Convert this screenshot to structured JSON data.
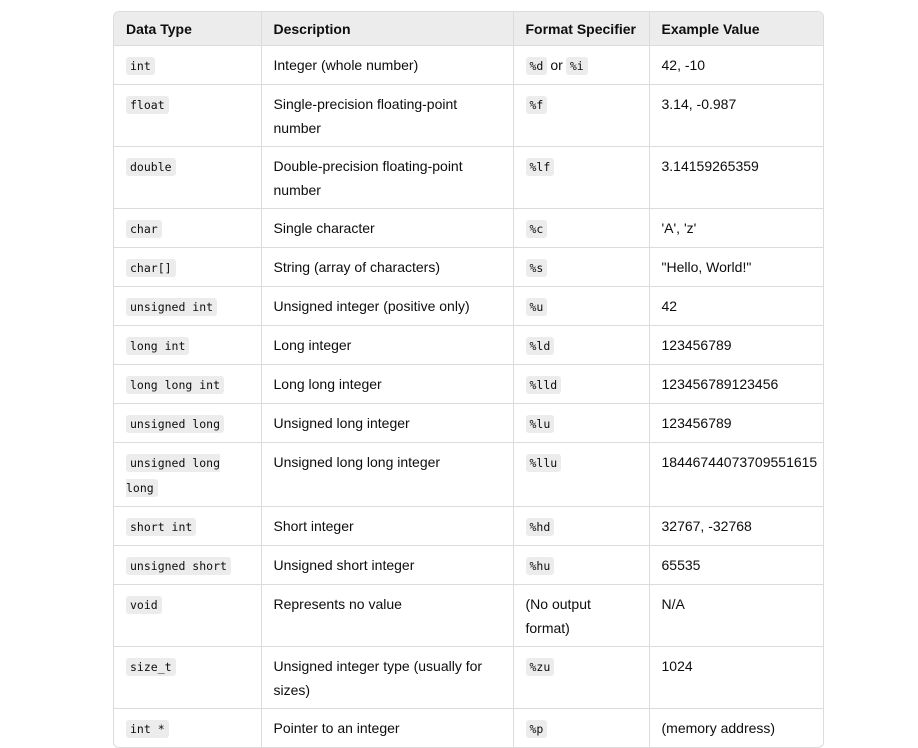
{
  "table": {
    "headers": [
      "Data Type",
      "Description",
      "Format Specifier",
      "Example Value"
    ],
    "rows": [
      {
        "type": "int",
        "description": "Integer (whole number)",
        "format": [
          "%d",
          "%i"
        ],
        "format_joiner": "or",
        "example": "42, -10"
      },
      {
        "type": "float",
        "description": "Single-precision floating-point number",
        "format": [
          "%f"
        ],
        "example": "3.14, -0.987"
      },
      {
        "type": "double",
        "description": "Double-precision floating-point number",
        "format": [
          "%lf"
        ],
        "example": "3.14159265359"
      },
      {
        "type": "char",
        "description": "Single character",
        "format": [
          "%c"
        ],
        "example": "'A', 'z'"
      },
      {
        "type": "char[]",
        "description": "String (array of characters)",
        "format": [
          "%s"
        ],
        "example": "\"Hello, World!\""
      },
      {
        "type": "unsigned int",
        "description": "Unsigned integer (positive only)",
        "format": [
          "%u"
        ],
        "example": "42"
      },
      {
        "type": "long int",
        "description": "Long integer",
        "format": [
          "%ld"
        ],
        "example": "123456789"
      },
      {
        "type": "long long int",
        "description": "Long long integer",
        "format": [
          "%lld"
        ],
        "example": "123456789123456"
      },
      {
        "type": "unsigned long",
        "description": "Unsigned long integer",
        "format": [
          "%lu"
        ],
        "example": "123456789"
      },
      {
        "type": "unsigned long long",
        "description": "Unsigned long long integer",
        "format": [
          "%llu"
        ],
        "example": "18446744073709551615"
      },
      {
        "type": "short int",
        "description": "Short integer",
        "format": [
          "%hd"
        ],
        "example": "32767, -32768"
      },
      {
        "type": "unsigned short",
        "description": "Unsigned short integer",
        "format": [
          "%hu"
        ],
        "example": "65535"
      },
      {
        "type": "void",
        "description": "Represents no value",
        "format_text": "(No output format)",
        "example": "N/A"
      },
      {
        "type": "size_t",
        "description": "Unsigned integer type (usually for sizes)",
        "format": [
          "%zu"
        ],
        "example": "1024"
      },
      {
        "type": "int *",
        "description": "Pointer to an integer",
        "format": [
          "%p"
        ],
        "example": "(memory address)"
      }
    ]
  }
}
